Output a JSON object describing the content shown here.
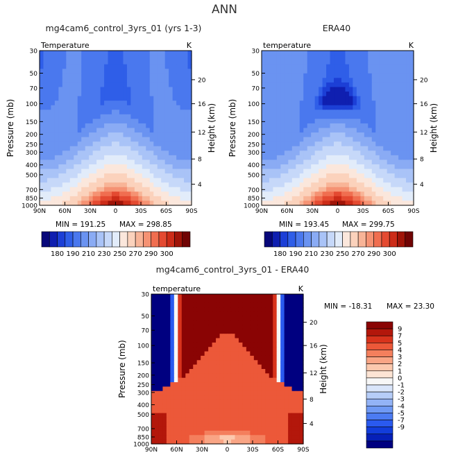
{
  "page": {
    "title": "ANN"
  },
  "colors": {
    "abs_levels": [
      "#08087a",
      "#0f1fb0",
      "#1c3fd6",
      "#2f5ee8",
      "#4a78ee",
      "#6a93f1",
      "#8aabf4",
      "#a9c3f7",
      "#c6d8f9",
      "#e2ecfa",
      "#fbe7dc",
      "#fbd2bc",
      "#f8b497",
      "#f59273",
      "#f06e50",
      "#e44a31",
      "#cc2c18",
      "#a01408",
      "#700404"
    ],
    "diff_levels": [
      "#000080",
      "#0620b8",
      "#123ddb",
      "#2a5aef",
      "#4c7bf2",
      "#6f99f4",
      "#93b3f6",
      "#b6cdf8",
      "#d9e5fa",
      "#f7f7f7",
      "#fde4d4",
      "#fcc9ae",
      "#f9a585",
      "#f47f5d",
      "#ec5839",
      "#d8331c",
      "#b3170b",
      "#8a0404"
    ]
  },
  "chart_data": [
    {
      "id": "model",
      "type": "contour",
      "title": "mg4cam6_control_3yrs_01 (yrs 1-3)",
      "left_label": "Temperature",
      "right_label": "K",
      "ylabel": "Pressure (mb)",
      "ylabel_right": "Height (km)",
      "x_ticks": [
        "90N",
        "60N",
        "30N",
        "0",
        "30S",
        "60S",
        "90S"
      ],
      "y_ticks": [
        "30",
        "50",
        "70",
        "100",
        "150",
        "200",
        "250",
        "300",
        "400",
        "500",
        "700",
        "850",
        "1000"
      ],
      "height_ticks": [
        "20",
        "16",
        "12",
        "8",
        "4"
      ],
      "min_label": "MIN = 191.25",
      "max_label": "MAX = 298.85",
      "min": 191.25,
      "max": 298.85
    },
    {
      "id": "obs",
      "type": "contour",
      "title": "ERA40",
      "left_label": "temperature",
      "right_label": "K",
      "ylabel": "Pressure (mb)",
      "ylabel_right": "Height (km)",
      "x_ticks": [
        "90N",
        "60N",
        "30N",
        "0",
        "30S",
        "60S",
        "90S"
      ],
      "y_ticks": [
        "30",
        "50",
        "70",
        "100",
        "150",
        "200",
        "250",
        "300",
        "400",
        "500",
        "700",
        "850",
        "1000"
      ],
      "height_ticks": [
        "20",
        "16",
        "12",
        "8",
        "4"
      ],
      "min_label": "MIN = 193.45",
      "max_label": "MAX = 299.75",
      "min": 193.45,
      "max": 299.75
    },
    {
      "id": "diff",
      "type": "contour",
      "title": "mg4cam6_control_3yrs_01 - ERA40",
      "left_label": "temperature",
      "right_label": "K",
      "ylabel": "Pressure (mb)",
      "ylabel_right": "Height (km)",
      "x_ticks": [
        "90N",
        "60N",
        "30N",
        "0",
        "30S",
        "60S",
        "90S"
      ],
      "y_ticks": [
        "30",
        "50",
        "70",
        "100",
        "150",
        "200",
        "250",
        "300",
        "400",
        "500",
        "700",
        "850",
        "1000"
      ],
      "height_ticks": [
        "20",
        "16",
        "12",
        "8",
        "4"
      ],
      "min_label": "MIN = -18.31",
      "max_label": "MAX =  23.30",
      "min": -18.31,
      "max": 23.3
    }
  ],
  "colorbars": {
    "absolute": {
      "labels": [
        "180",
        "190",
        "210",
        "230",
        "250",
        "270",
        "290",
        "300"
      ]
    },
    "difference": {
      "labels": [
        "9",
        "7",
        "5",
        "4",
        "3",
        "2",
        "1",
        "0",
        "-1",
        "-2",
        "-3",
        "-4",
        "-5",
        "-7",
        "-9"
      ]
    }
  }
}
